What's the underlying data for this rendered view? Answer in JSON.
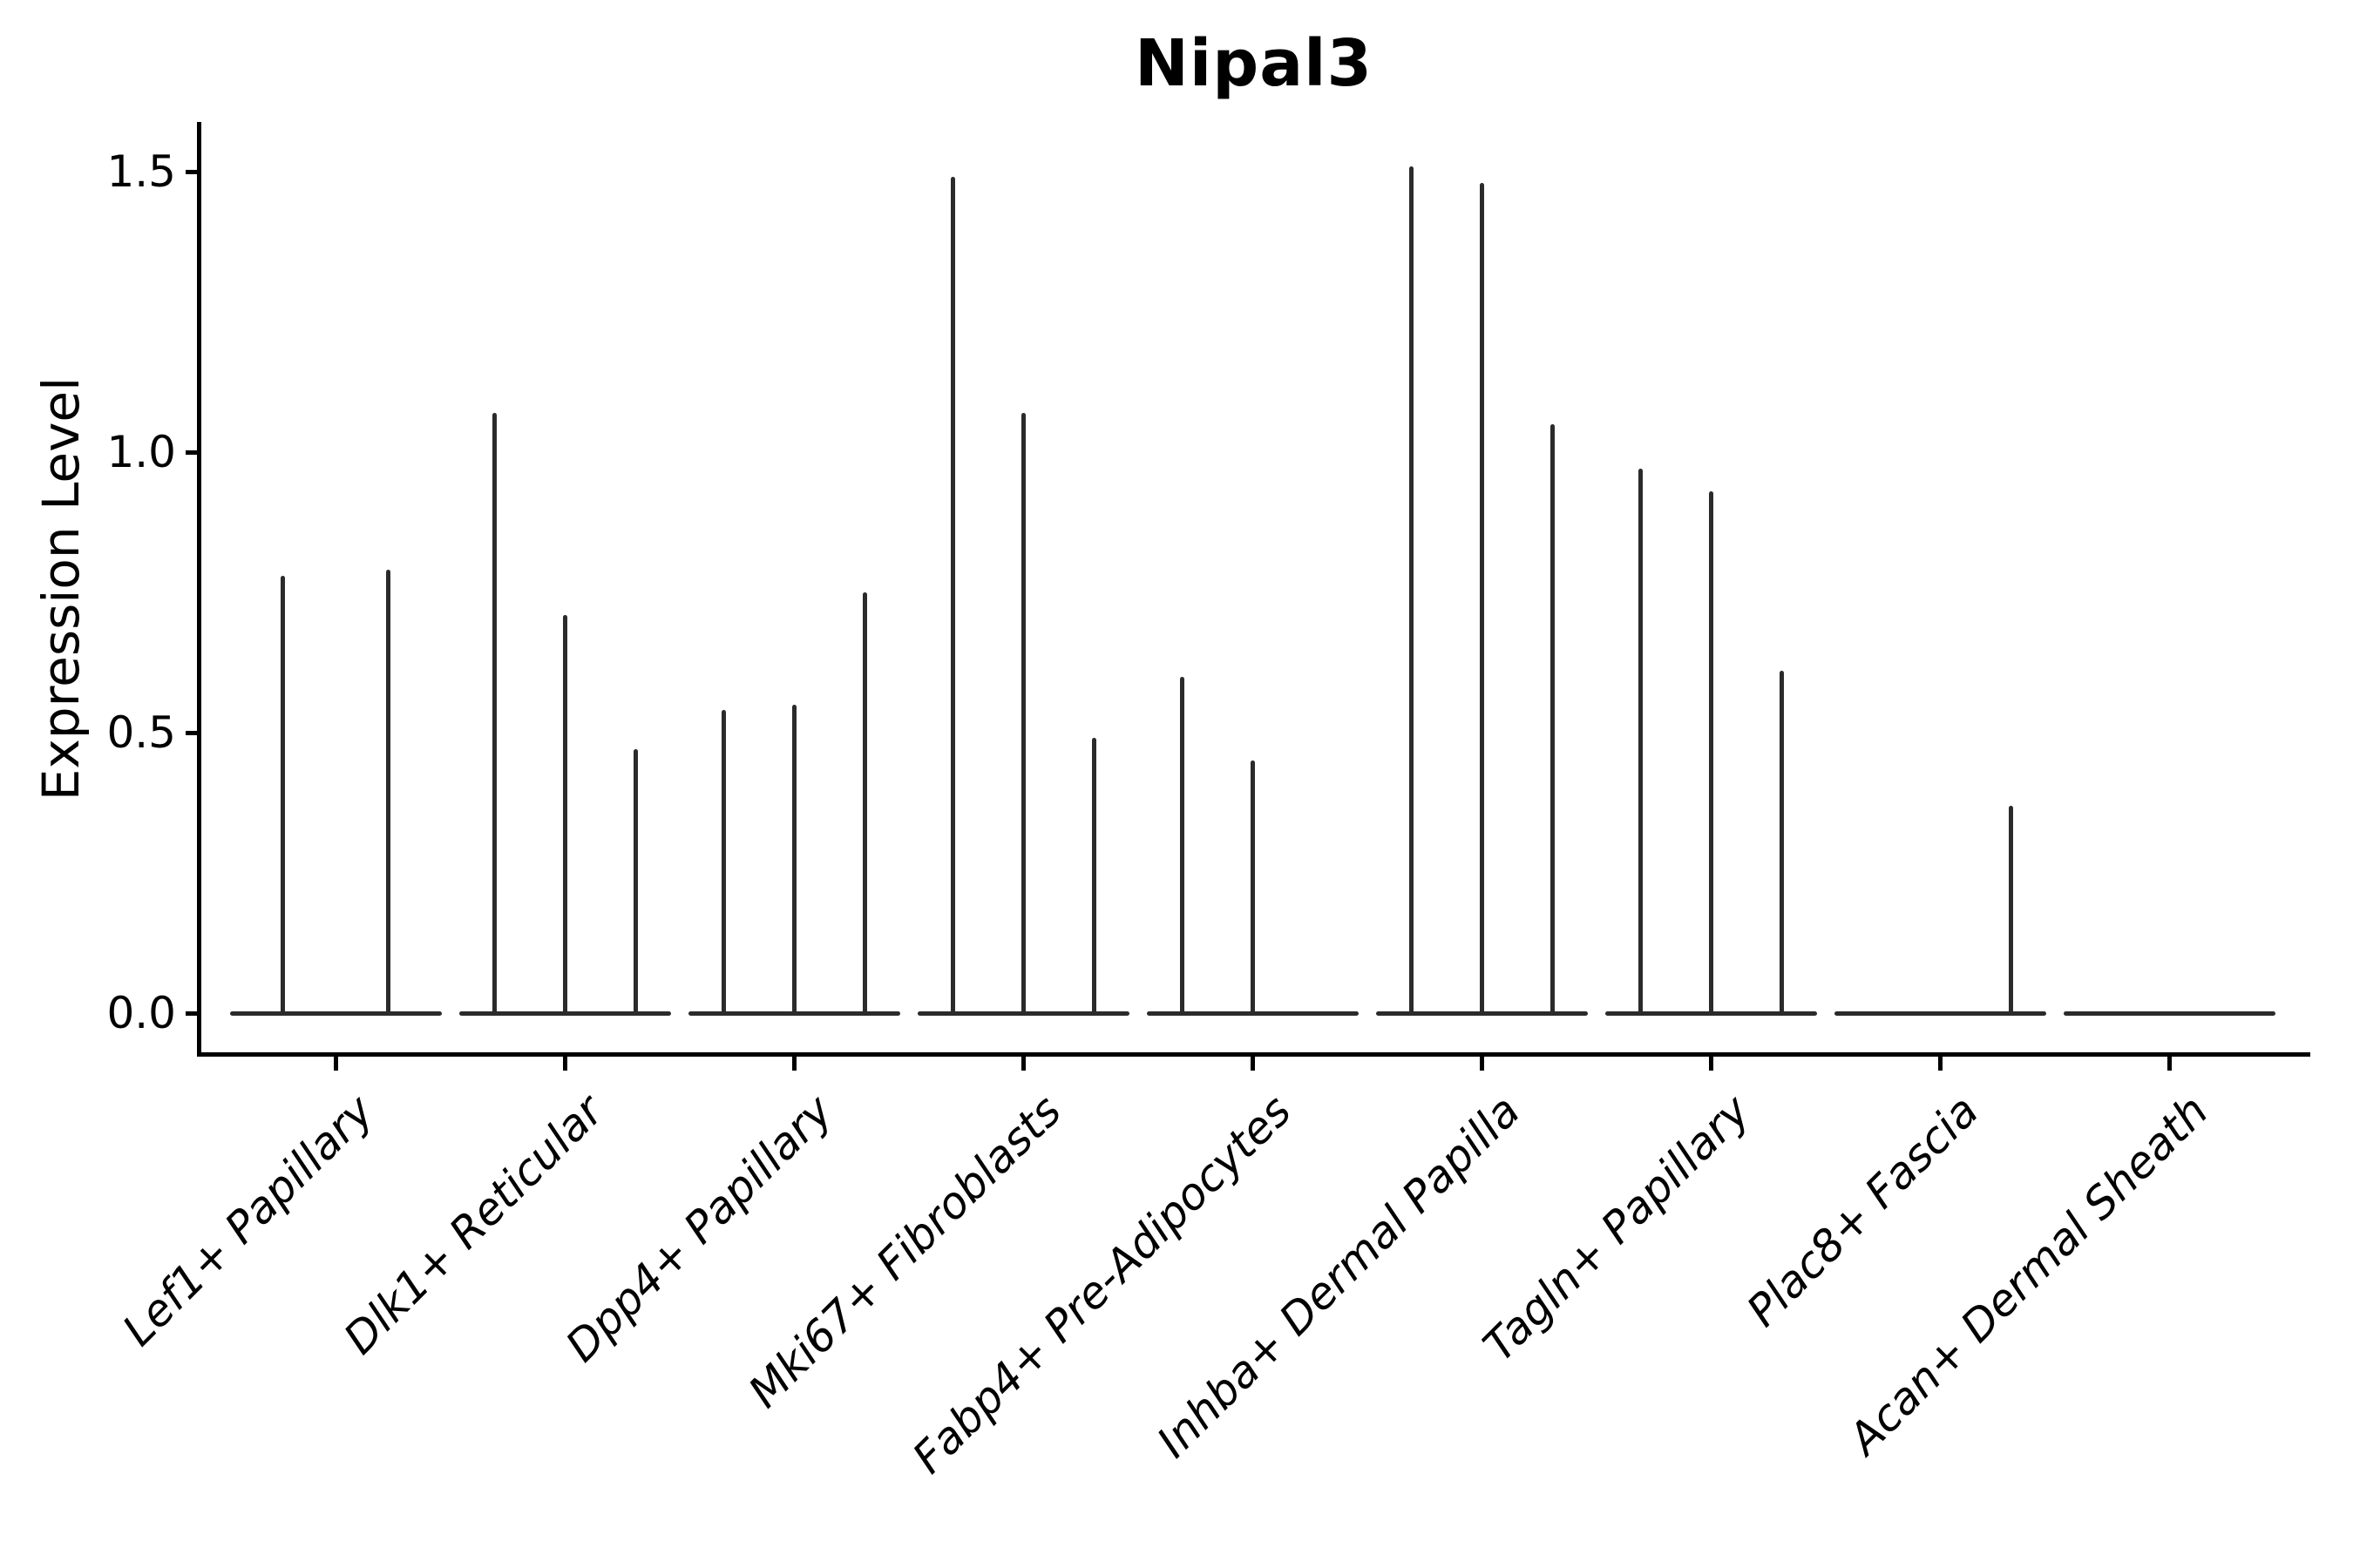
{
  "chart_data": {
    "type": "violin",
    "title": "Nipal3",
    "ylabel": "Expression Level",
    "xlabel": "",
    "yticks": [
      0.0,
      0.5,
      1.0,
      1.5
    ],
    "ylim": [
      -0.07,
      1.59
    ],
    "grid": false,
    "legend": false,
    "line_color": "#2b2b2b",
    "spine_color": "#000000",
    "categories": [
      "Lef1+ Papillary",
      "Dlk1+ Reticular",
      "Dpp4+ Papillary",
      "Mki67+ Fibroblasts",
      "Fabp4+ Pre-Adipocytes",
      "Inhba+ Dermal Papilla",
      "Tagln+ Papillary",
      "Plac8+ Fascia",
      "Acan+ Dermal Sheath"
    ],
    "groups": [
      {
        "category": "Lef1+ Papillary",
        "violin_maxima": [
          0.78,
          0.79
        ]
      },
      {
        "category": "Dlk1+ Reticular",
        "violin_maxima": [
          1.07,
          0.71,
          0.47
        ]
      },
      {
        "category": "Dpp4+ Papillary",
        "violin_maxima": [
          0.54,
          0.55,
          0.75
        ]
      },
      {
        "category": "Mki67+ Fibroblasts",
        "violin_maxima": [
          1.49,
          1.07,
          0.49
        ]
      },
      {
        "category": "Fabp4+ Pre-Adipocytes",
        "violin_maxima": [
          0.6,
          0.45,
          0
        ]
      },
      {
        "category": "Inhba+ Dermal Papilla",
        "violin_maxima": [
          1.51,
          1.48,
          1.05
        ]
      },
      {
        "category": "Tagln+ Papillary",
        "violin_maxima": [
          0.97,
          0.93,
          0.61
        ]
      },
      {
        "category": "Plac8+ Fascia",
        "violin_maxima": [
          0,
          0,
          0.37
        ]
      },
      {
        "category": "Acan+ Dermal Sheath",
        "violin_maxima": [
          0,
          0,
          0
        ]
      }
    ],
    "annotation": "violins are near-zero-width spikes; all mass at 0 with thin tails"
  }
}
